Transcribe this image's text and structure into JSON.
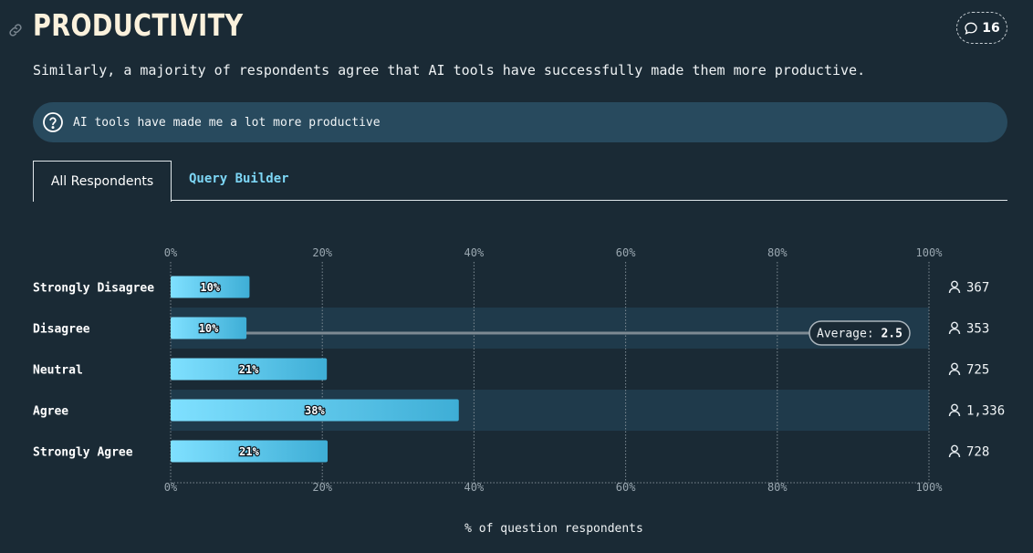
{
  "header": {
    "title": "PRODUCTIVITY",
    "comment_count": "16",
    "intro": "Similarly, a majority of respondents agree that AI tools have successfully made them more productive."
  },
  "question": {
    "text": "AI tools have made me a lot more productive"
  },
  "tabs": [
    {
      "label": "All Respondents",
      "active": true
    },
    {
      "label": "Query Builder",
      "active": false
    }
  ],
  "icons": {
    "link": "link-icon",
    "comment": "speech-bubble-icon",
    "question": "question-circle-icon",
    "person": "person-icon"
  },
  "colors": {
    "background": "#1a2a35",
    "bar_start": "#7fe0ff",
    "bar_end": "#3eaed6",
    "row_highlight": "#1f3a4b",
    "tab_accent": "#7dd6f5"
  },
  "chart_data": {
    "type": "bar",
    "orientation": "horizontal",
    "categories": [
      "Strongly Disagree",
      "Disagree",
      "Neutral",
      "Agree",
      "Strongly Agree"
    ],
    "values": [
      10.4,
      10.0,
      20.6,
      38.0,
      20.7
    ],
    "value_labels": [
      "10%",
      "10%",
      "21%",
      "38%",
      "21%"
    ],
    "counts": [
      "367",
      "353",
      "725",
      "1,336",
      "728"
    ],
    "xlim": [
      0,
      100
    ],
    "ticks": [
      "0%",
      "20%",
      "40%",
      "60%",
      "80%",
      "100%"
    ],
    "tick_values": [
      0,
      20,
      40,
      60,
      80,
      100
    ],
    "xlabel": "% of question respondents",
    "ylabel": "",
    "grid": true,
    "average": {
      "label": "Average:",
      "value": "2.5",
      "numeric": 2.5
    }
  }
}
